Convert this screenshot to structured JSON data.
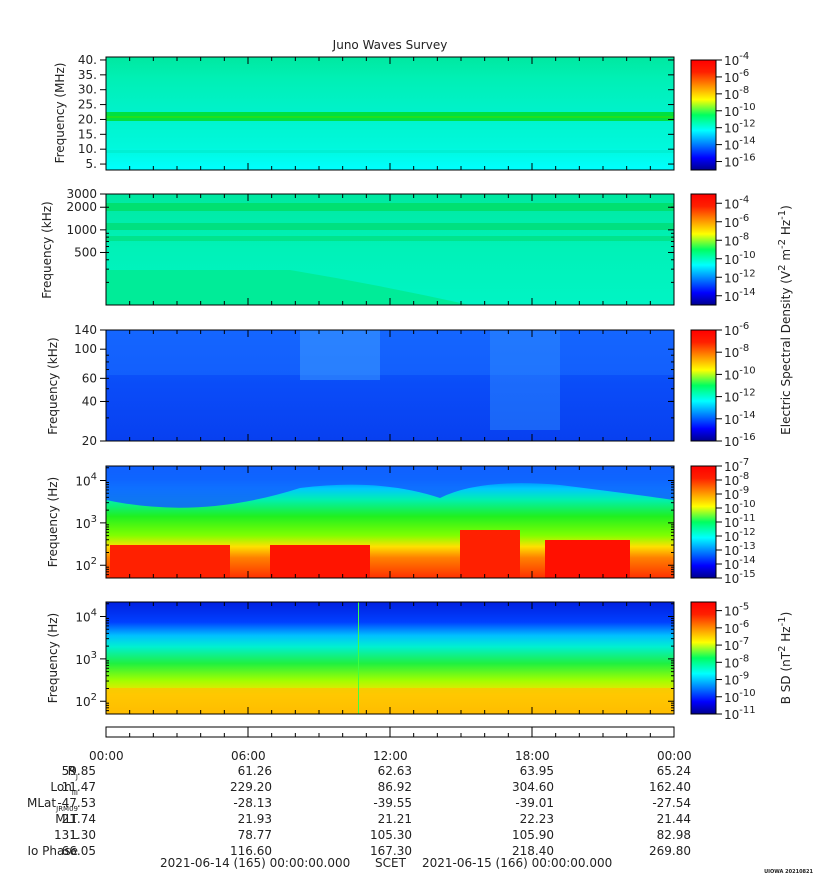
{
  "title": "Juno Waves Survey",
  "credit": "UIOWA 20210821",
  "panels": [
    {
      "id": "mhz",
      "ylabel": "Frequency (MHz)",
      "yscale": "linear",
      "ylim": [
        3,
        41
      ],
      "yticks": [
        "40.",
        "35.",
        "30.",
        "25.",
        "20.",
        "15.",
        "10.",
        "5."
      ],
      "ytick_values": [
        40,
        35,
        30,
        25,
        20,
        15,
        10,
        5
      ],
      "colorbar": {
        "exponents": [
          "-4",
          "-6",
          "-8",
          "-10",
          "-12",
          "-14",
          "-16"
        ],
        "range": [
          -17,
          -4
        ]
      }
    },
    {
      "id": "khz_high",
      "ylabel": "Frequency (kHz)",
      "yscale": "log",
      "ylim": [
        100,
        3000
      ],
      "yticks": [
        "3000",
        "2000",
        "1000",
        "500"
      ],
      "ytick_values": [
        3000,
        2000,
        1000,
        500
      ],
      "colorbar": {
        "exponents": [
          "-4",
          "-6",
          "-8",
          "-10",
          "-12",
          "-14"
        ],
        "range": [
          -15,
          -3
        ]
      }
    },
    {
      "id": "khz_low",
      "ylabel": "Frequency (kHz)",
      "yscale": "log",
      "ylim": [
        20,
        140
      ],
      "yticks": [
        "140",
        "100",
        "60",
        "40",
        "20"
      ],
      "ytick_values": [
        140,
        100,
        60,
        40,
        20
      ],
      "colorbar": {
        "exponents": [
          "-6",
          "-8",
          "-10",
          "-12",
          "-14",
          "-16"
        ],
        "range": [
          -16,
          -6
        ]
      }
    },
    {
      "id": "hz_e",
      "ylabel": "Frequency (Hz)",
      "yscale": "log",
      "ylim": [
        50,
        22000
      ],
      "yticks": [
        "4",
        "3",
        "2"
      ],
      "ytick_values": [
        10000,
        1000,
        100
      ],
      "colorbar": {
        "exponents": [
          "-7",
          "-8",
          "-9",
          "-10",
          "-11",
          "-12",
          "-13",
          "-14",
          "-15"
        ],
        "range": [
          -15,
          -7
        ]
      }
    },
    {
      "id": "hz_b",
      "ylabel": "Frequency (Hz)",
      "yscale": "log",
      "ylim": [
        50,
        22000
      ],
      "yticks": [
        "4",
        "3",
        "2"
      ],
      "ytick_values": [
        10000,
        1000,
        100
      ],
      "colorbar": {
        "exponents": [
          "-5",
          "-6",
          "-7",
          "-8",
          "-9",
          "-10",
          "-11"
        ],
        "range": [
          -11,
          -4.5
        ]
      }
    }
  ],
  "colorbar_labels": {
    "electric_prefix": "Electric Spectral Density (V",
    "electric_mid": " m",
    "electric_mid2": " Hz",
    "electric_suffix": ")",
    "bsd_prefix": "B SD (nT",
    "bsd_mid": " Hz",
    "bsd_suffix": ")",
    "pow_2": "2",
    "pow_neg2": "-2",
    "pow_neg1": "-1",
    "base": "10"
  },
  "time_axis": {
    "labels": [
      "00:00",
      "06:00",
      "12:00",
      "18:00",
      "00:00"
    ],
    "hours": [
      0,
      6,
      12,
      18,
      24
    ]
  },
  "ephemeris": {
    "rows": [
      {
        "name": "R",
        "sub": "J",
        "values": [
          "59.85",
          "61.26",
          "62.63",
          "63.95",
          "65.24"
        ]
      },
      {
        "name": "Lon",
        "sub": "III",
        "values": [
          "11.47",
          "229.20",
          "86.92",
          "304.60",
          "162.40"
        ]
      },
      {
        "name": "MLat",
        "sub": "JRM09",
        "values": [
          "-47.53",
          "-28.13",
          "-39.55",
          "-39.01",
          "-27.54"
        ]
      },
      {
        "name": "MLT",
        "sub": "",
        "values": [
          "21.74",
          "21.93",
          "21.21",
          "22.23",
          "21.44"
        ]
      },
      {
        "name": "L",
        "sub": "",
        "values": [
          "131.30",
          "78.77",
          "105.30",
          "105.90",
          "82.98"
        ]
      },
      {
        "name": "Io Phase",
        "sub": "",
        "values": [
          "66.05",
          "116.60",
          "167.30",
          "218.40",
          "269.80"
        ]
      }
    ]
  },
  "footer": {
    "start": "2021-06-14 (165) 00:00:00.000",
    "scet": "SCET",
    "end": "2021-06-15 (166) 00:00:00.000"
  }
}
